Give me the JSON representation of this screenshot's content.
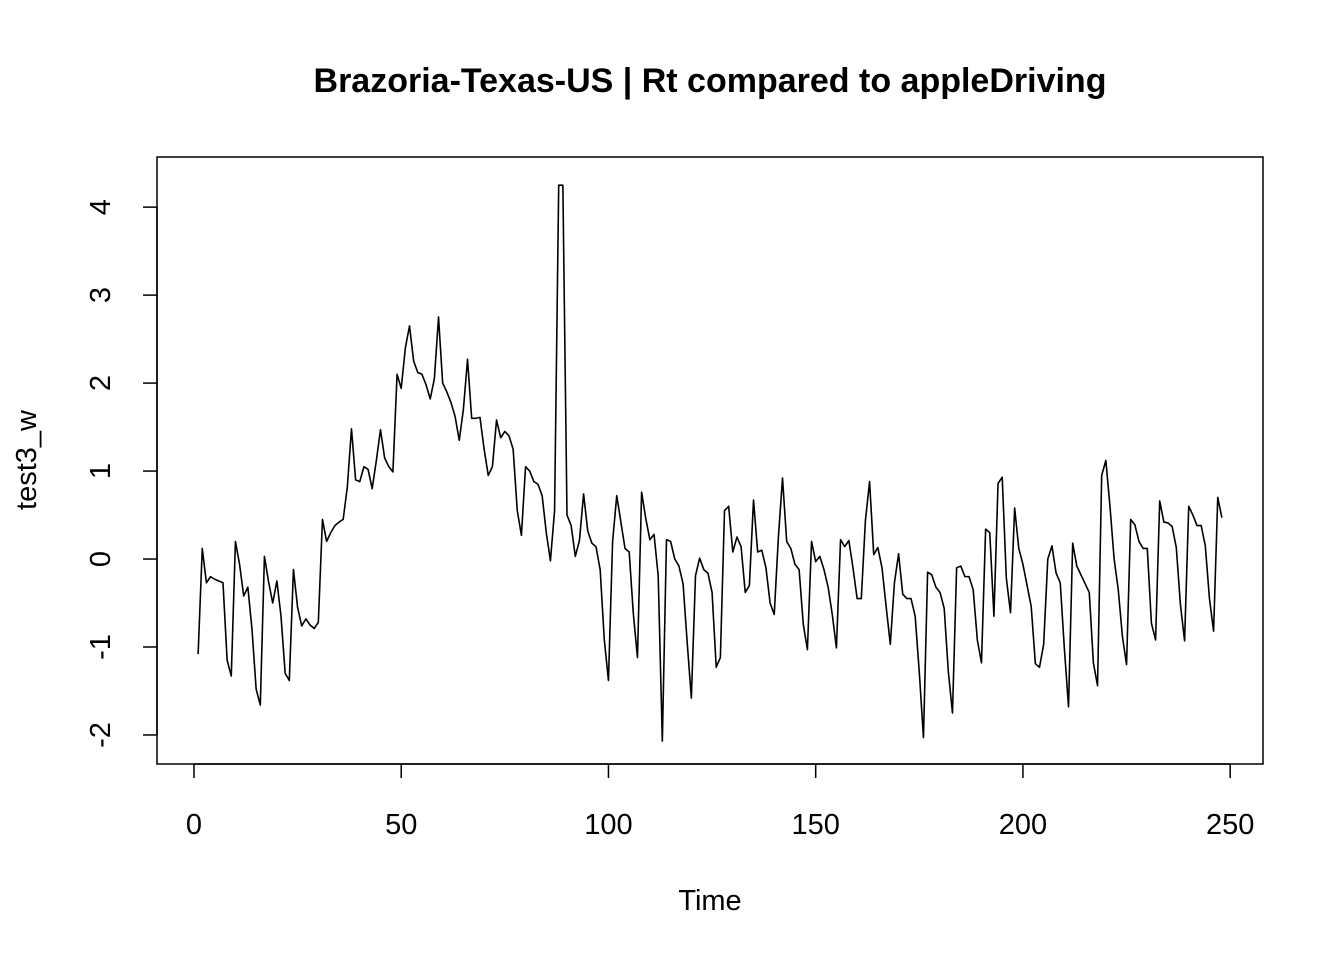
{
  "chart_data": {
    "type": "line",
    "title": "Brazoria-Texas-US | Rt compared to appleDriving",
    "xlabel": "Time",
    "ylabel": "test3_w",
    "xlim": [
      -8.92,
      257.92
    ],
    "ylim": [
      -2.33,
      4.57
    ],
    "x_ticks": [
      0,
      50,
      100,
      150,
      200,
      250
    ],
    "y_ticks": [
      -2,
      -1,
      0,
      1,
      2,
      3,
      4
    ],
    "x_tick_labels": [
      "0",
      "50",
      "100",
      "150",
      "200",
      "250"
    ],
    "y_tick_labels": [
      "-2",
      "-1",
      "0",
      "1",
      "2",
      "3",
      "4"
    ],
    "grid": false,
    "series": [
      {
        "color": "#000000",
        "x_start": 1,
        "values": [
          -1.08,
          0.12,
          -0.27,
          -0.2,
          -0.23,
          -0.25,
          -0.27,
          -1.15,
          -1.33,
          0.2,
          -0.06,
          -0.42,
          -0.32,
          -0.8,
          -1.48,
          -1.66,
          0.03,
          -0.26,
          -0.5,
          -0.25,
          -0.65,
          -1.3,
          -1.38,
          -0.12,
          -0.55,
          -0.76,
          -0.68,
          -0.75,
          -0.79,
          -0.72,
          0.45,
          0.2,
          0.3,
          0.38,
          0.42,
          0.45,
          0.82,
          1.48,
          0.9,
          0.88,
          1.05,
          1.02,
          0.8,
          1.12,
          1.47,
          1.15,
          1.05,
          0.99,
          2.1,
          1.94,
          2.4,
          2.65,
          2.25,
          2.12,
          2.1,
          1.98,
          1.82,
          2.05,
          2.75,
          2.0,
          1.9,
          1.78,
          1.62,
          1.35,
          1.7,
          2.27,
          1.6,
          1.6,
          1.61,
          1.25,
          0.95,
          1.05,
          1.58,
          1.38,
          1.45,
          1.4,
          1.25,
          0.55,
          0.27,
          1.05,
          1.0,
          0.88,
          0.85,
          0.72,
          0.3,
          -0.02,
          0.55,
          4.25,
          4.25,
          0.5,
          0.38,
          0.03,
          0.21,
          0.74,
          0.32,
          0.18,
          0.14,
          -0.12,
          -0.92,
          -1.38,
          0.2,
          0.72,
          0.42,
          0.12,
          0.08,
          -0.62,
          -1.12,
          0.76,
          0.46,
          0.22,
          0.28,
          -0.19,
          -2.07,
          0.22,
          0.2,
          0.0,
          -0.08,
          -0.28,
          -0.95,
          -1.58,
          -0.19,
          0.01,
          -0.12,
          -0.16,
          -0.38,
          -1.23,
          -1.12,
          0.55,
          0.6,
          0.08,
          0.25,
          0.14,
          -0.38,
          -0.3,
          0.67,
          0.08,
          0.1,
          -0.1,
          -0.5,
          -0.63,
          0.25,
          0.92,
          0.2,
          0.12,
          -0.06,
          -0.12,
          -0.74,
          -1.03,
          0.2,
          -0.03,
          0.03,
          -0.12,
          -0.32,
          -0.63,
          -1.01,
          0.22,
          0.14,
          0.21,
          -0.1,
          -0.45,
          -0.45,
          0.44,
          0.88,
          0.05,
          0.13,
          -0.1,
          -0.54,
          -0.97,
          -0.27,
          0.06,
          -0.4,
          -0.45,
          -0.45,
          -0.65,
          -1.29,
          -2.03,
          -0.15,
          -0.18,
          -0.32,
          -0.38,
          -0.56,
          -1.28,
          -1.75,
          -0.1,
          -0.08,
          -0.2,
          -0.2,
          -0.35,
          -0.92,
          -1.18,
          0.34,
          0.3,
          -0.65,
          0.86,
          0.93,
          -0.22,
          -0.61,
          0.58,
          0.12,
          -0.06,
          -0.3,
          -0.54,
          -1.19,
          -1.23,
          -0.97,
          0.0,
          0.15,
          -0.16,
          -0.27,
          -1.02,
          -1.68,
          0.18,
          -0.08,
          -0.18,
          -0.28,
          -0.38,
          -1.18,
          -1.44,
          0.95,
          1.12,
          0.6,
          0.0,
          -0.35,
          -0.88,
          -1.2,
          0.45,
          0.39,
          0.2,
          0.12,
          0.12,
          -0.73,
          -0.92,
          0.66,
          0.42,
          0.41,
          0.37,
          0.13,
          -0.52,
          -0.93,
          0.6,
          0.5,
          0.38,
          0.38,
          0.15,
          -0.45,
          -0.82,
          0.7,
          0.47
        ]
      }
    ]
  }
}
